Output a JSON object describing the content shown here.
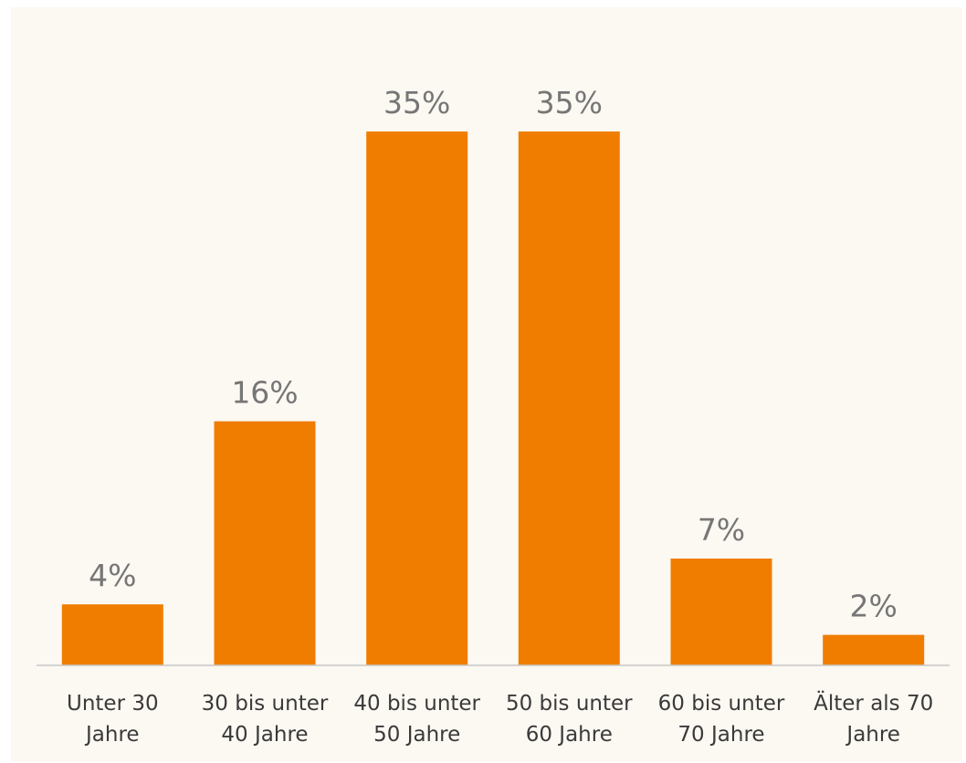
{
  "chart_data": {
    "type": "bar",
    "categories": [
      [
        "Unter 30",
        "Jahre"
      ],
      [
        "30 bis unter",
        "40 Jahre"
      ],
      [
        "40 bis unter",
        "50 Jahre"
      ],
      [
        "50 bis unter",
        "60 Jahre"
      ],
      [
        "60 bis unter",
        "70 Jahre"
      ],
      [
        "Älter als 70",
        "Jahre"
      ]
    ],
    "values": [
      4,
      16,
      35,
      35,
      7,
      2
    ],
    "value_labels": [
      "4%",
      "16%",
      "35%",
      "35%",
      "7%",
      "2%"
    ],
    "unit": "%",
    "title": "",
    "xlabel": "",
    "ylabel": "",
    "ylim": [
      0,
      38
    ],
    "grid": false,
    "bar_color": "#f07d00",
    "background_color": "#fcf8f2",
    "axis_color": "#c8c8c8"
  }
}
